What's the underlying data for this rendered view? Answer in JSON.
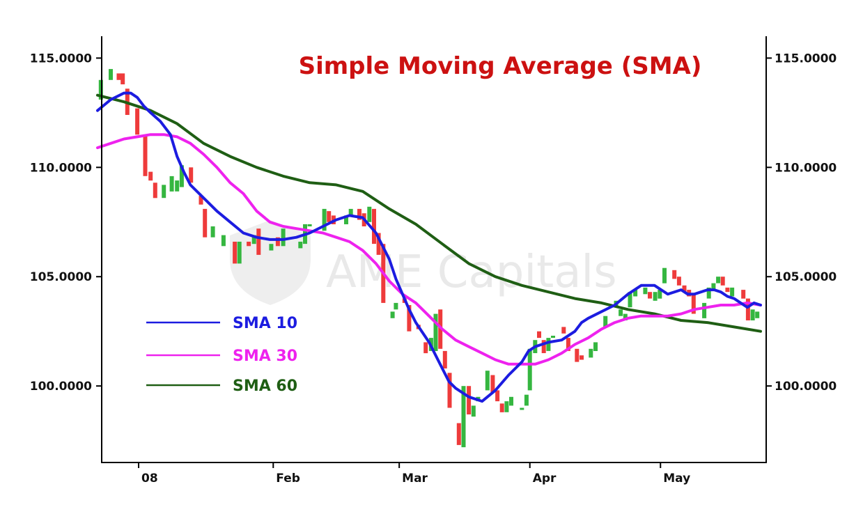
{
  "chart_data": {
    "type": "line",
    "title": "Simple Moving Average (SMA)",
    "watermark": "AME Capitals",
    "ylim": [
      96.5,
      116.0
    ],
    "xlim": [
      0,
      100
    ],
    "y_ticks": [
      100,
      105,
      110,
      115
    ],
    "y_tick_labels": [
      "100.0000",
      "105.0000",
      "110.0000",
      "115.0000"
    ],
    "x_ticks": [
      6.2,
      26.5,
      45.5,
      65.2,
      84.9
    ],
    "x_tick_labels": [
      "08",
      "Feb",
      "Mar",
      "Apr",
      "May"
    ],
    "grid": false,
    "legend_position": "lower-left",
    "colors": {
      "up": "#35b640",
      "down": "#ee3b3b",
      "title": "#cc1111"
    },
    "series": [
      {
        "name": "SMA 10",
        "color": "#1c1ce0",
        "x": [
          0,
          2,
          4,
          5,
          6,
          7,
          8,
          9.5,
          11,
          12,
          13,
          14,
          16,
          18,
          20,
          22,
          24,
          26,
          28,
          30,
          32,
          34,
          36,
          38,
          40,
          42,
          44,
          45,
          46,
          47,
          48,
          50,
          52,
          53,
          54,
          56,
          58,
          60,
          62,
          63,
          64,
          65,
          66,
          67,
          68,
          70,
          72,
          73,
          74,
          76,
          78,
          80,
          82,
          84,
          86,
          88,
          89,
          90,
          91,
          92,
          93,
          94,
          95,
          96,
          97,
          98,
          99,
          100
        ],
        "values": [
          112.6,
          113.1,
          113.4,
          113.4,
          113.2,
          112.8,
          112.5,
          112.1,
          111.5,
          110.5,
          109.8,
          109.2,
          108.6,
          108.0,
          107.5,
          107.0,
          106.8,
          106.7,
          106.7,
          106.8,
          107.0,
          107.3,
          107.6,
          107.8,
          107.7,
          107.0,
          105.8,
          104.9,
          104.2,
          103.5,
          102.9,
          102.0,
          100.8,
          100.2,
          99.9,
          99.5,
          99.3,
          99.8,
          100.5,
          100.8,
          101.1,
          101.6,
          101.8,
          101.9,
          102.0,
          102.1,
          102.5,
          102.9,
          103.1,
          103.4,
          103.7,
          104.2,
          104.6,
          104.6,
          104.2,
          104.4,
          104.2,
          104.2,
          104.3,
          104.4,
          104.4,
          104.3,
          104.1,
          104.0,
          103.8,
          103.6,
          103.8,
          103.7
        ]
      },
      {
        "name": "SMA 30",
        "color": "#ee22ee",
        "x": [
          0,
          2,
          4,
          6,
          8,
          10,
          12,
          14,
          16,
          18,
          20,
          22,
          24,
          26,
          28,
          30,
          32,
          34,
          36,
          38,
          40,
          42,
          44,
          46,
          48,
          50,
          52,
          54,
          56,
          58,
          60,
          62,
          64,
          66,
          68,
          70,
          72,
          74,
          76,
          78,
          80,
          82,
          84,
          86,
          88,
          90,
          92,
          94,
          96,
          98,
          100
        ],
        "values": [
          110.9,
          111.1,
          111.3,
          111.4,
          111.5,
          111.5,
          111.4,
          111.1,
          110.6,
          110.0,
          109.3,
          108.8,
          108.0,
          107.5,
          107.3,
          107.2,
          107.1,
          107.0,
          106.8,
          106.6,
          106.2,
          105.6,
          104.8,
          104.2,
          103.8,
          103.2,
          102.6,
          102.1,
          101.8,
          101.5,
          101.2,
          101.0,
          101.0,
          101.0,
          101.2,
          101.5,
          101.9,
          102.2,
          102.6,
          102.9,
          103.1,
          103.2,
          103.2,
          103.2,
          103.3,
          103.5,
          103.6,
          103.7,
          103.7,
          103.8,
          103.7
        ]
      },
      {
        "name": "SMA 60",
        "color": "#1f5e14",
        "x": [
          0,
          4,
          8,
          12,
          16,
          20,
          24,
          28,
          32,
          36,
          40,
          44,
          48,
          52,
          56,
          60,
          64,
          68,
          72,
          76,
          80,
          84,
          88,
          92,
          96,
          100
        ],
        "values": [
          113.3,
          113.0,
          112.6,
          112.0,
          111.1,
          110.5,
          110.0,
          109.6,
          109.3,
          109.2,
          108.9,
          108.1,
          107.4,
          106.5,
          105.6,
          105.0,
          104.6,
          104.3,
          104.0,
          103.8,
          103.5,
          103.3,
          103.0,
          102.9,
          102.7,
          102.5
        ]
      }
    ],
    "candles": [
      [
        0.5,
        113.1,
        114.0
      ],
      [
        2.0,
        114.0,
        114.5
      ],
      [
        3.2,
        114.3,
        114.0
      ],
      [
        3.8,
        114.3,
        113.8
      ],
      [
        4.5,
        113.6,
        112.4
      ],
      [
        6.0,
        112.7,
        111.5
      ],
      [
        7.2,
        111.5,
        109.6
      ],
      [
        8.0,
        109.8,
        109.4
      ],
      [
        8.7,
        109.3,
        108.6
      ],
      [
        10.0,
        108.6,
        109.2
      ],
      [
        11.2,
        108.9,
        109.6
      ],
      [
        12.0,
        108.9,
        109.4
      ],
      [
        12.7,
        109.1,
        110.1
      ],
      [
        14.1,
        110.0,
        109.3
      ],
      [
        15.6,
        108.7,
        108.3
      ],
      [
        16.2,
        108.1,
        106.8
      ],
      [
        17.4,
        106.8,
        107.3
      ],
      [
        19.0,
        106.4,
        106.9
      ],
      [
        20.7,
        106.6,
        105.6
      ],
      [
        21.4,
        105.6,
        106.6
      ],
      [
        22.8,
        106.6,
        106.4
      ],
      [
        23.6,
        106.5,
        106.9
      ],
      [
        24.3,
        107.2,
        106.0
      ],
      [
        26.2,
        106.2,
        106.5
      ],
      [
        27.2,
        106.8,
        106.4
      ],
      [
        28.0,
        106.4,
        107.2
      ],
      [
        30.6,
        106.3,
        106.6
      ],
      [
        31.3,
        106.5,
        107.4
      ],
      [
        32.0,
        107.3,
        107.4
      ],
      [
        34.2,
        107.1,
        108.1
      ],
      [
        34.9,
        108.0,
        107.5
      ],
      [
        35.6,
        107.8,
        107.4
      ],
      [
        37.5,
        107.4,
        107.8
      ],
      [
        38.2,
        107.8,
        108.1
      ],
      [
        39.5,
        108.1,
        107.6
      ],
      [
        40.2,
        107.9,
        107.3
      ],
      [
        41.0,
        107.5,
        108.2
      ],
      [
        41.7,
        108.1,
        106.5
      ],
      [
        42.4,
        107.0,
        106.0
      ],
      [
        43.1,
        106.5,
        103.8
      ],
      [
        44.5,
        103.1,
        103.4
      ],
      [
        45.0,
        103.5,
        103.8
      ],
      [
        46.3,
        104.0,
        103.8
      ],
      [
        47.0,
        103.7,
        102.5
      ],
      [
        48.4,
        102.8,
        102.6
      ],
      [
        49.5,
        102.0,
        101.5
      ],
      [
        50.3,
        101.6,
        102.2
      ],
      [
        51.0,
        101.6,
        103.3
      ],
      [
        51.7,
        103.5,
        101.7
      ],
      [
        52.4,
        101.6,
        100.8
      ],
      [
        53.1,
        100.6,
        99.0
      ],
      [
        54.5,
        98.3,
        97.3
      ],
      [
        55.2,
        97.2,
        100.0
      ],
      [
        56.0,
        100.0,
        98.7
      ],
      [
        56.7,
        98.6,
        99.1
      ],
      [
        57.4,
        99.3,
        99.5
      ],
      [
        58.8,
        99.8,
        100.7
      ],
      [
        59.6,
        100.5,
        99.7
      ],
      [
        60.3,
        99.8,
        99.3
      ],
      [
        61.0,
        99.2,
        98.8
      ],
      [
        61.7,
        98.8,
        99.3
      ],
      [
        62.4,
        99.1,
        99.5
      ],
      [
        64.0,
        99.0,
        99.0
      ],
      [
        64.7,
        99.1,
        99.6
      ],
      [
        65.2,
        99.8,
        101.7
      ],
      [
        66.0,
        101.5,
        102.1
      ],
      [
        66.6,
        102.5,
        102.2
      ],
      [
        67.3,
        102.1,
        101.5
      ],
      [
        68.0,
        101.6,
        102.2
      ],
      [
        68.7,
        102.2,
        102.3
      ],
      [
        70.3,
        102.7,
        102.4
      ],
      [
        71.0,
        102.2,
        101.6
      ],
      [
        72.3,
        101.7,
        101.1
      ],
      [
        73.0,
        101.4,
        101.2
      ],
      [
        74.4,
        101.3,
        101.7
      ],
      [
        75.1,
        101.6,
        102.0
      ],
      [
        76.6,
        102.7,
        103.2
      ],
      [
        78.2,
        103.6,
        103.9
      ],
      [
        78.9,
        103.2,
        103.5
      ],
      [
        79.6,
        103.0,
        103.3
      ],
      [
        80.3,
        103.6,
        104.3
      ],
      [
        81.1,
        104.1,
        104.4
      ],
      [
        82.6,
        104.2,
        104.5
      ],
      [
        83.3,
        104.3,
        104.0
      ],
      [
        84.1,
        103.9,
        104.3
      ],
      [
        84.8,
        104.0,
        104.4
      ],
      [
        85.5,
        104.7,
        105.4
      ],
      [
        87.0,
        105.3,
        104.9
      ],
      [
        87.7,
        105.0,
        104.6
      ],
      [
        88.5,
        104.6,
        104.3
      ],
      [
        89.2,
        104.4,
        104.1
      ],
      [
        89.9,
        104.2,
        103.3
      ],
      [
        91.5,
        103.1,
        103.8
      ],
      [
        92.2,
        104.0,
        104.5
      ],
      [
        92.9,
        104.4,
        104.7
      ],
      [
        93.6,
        104.7,
        105.0
      ],
      [
        94.3,
        105.0,
        104.6
      ],
      [
        95.0,
        104.5,
        104.3
      ],
      [
        95.7,
        104.1,
        104.5
      ],
      [
        97.4,
        104.4,
        104.0
      ],
      [
        98.1,
        104.0,
        103.0
      ],
      [
        98.8,
        103.0,
        103.5
      ],
      [
        99.5,
        103.1,
        103.4
      ]
    ]
  }
}
